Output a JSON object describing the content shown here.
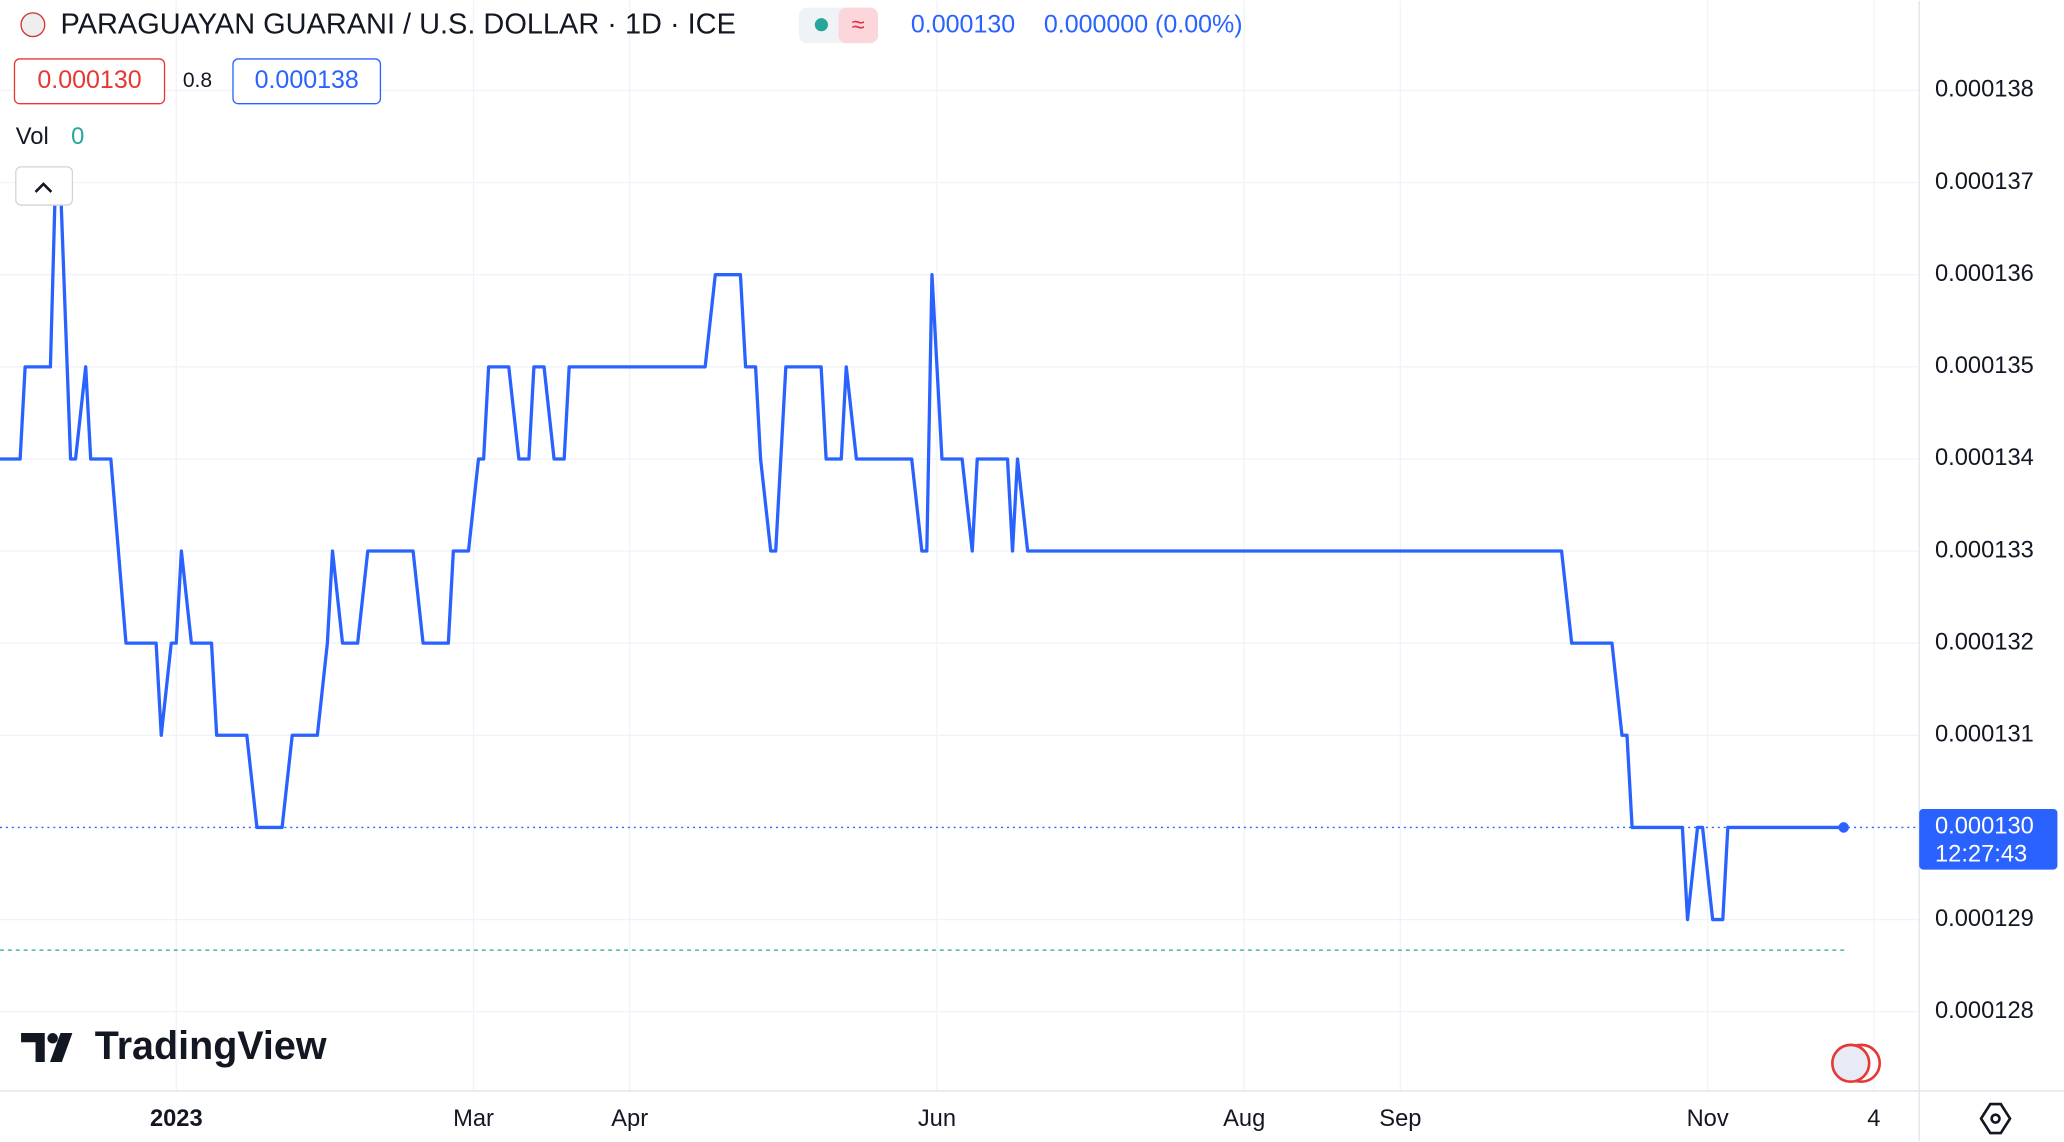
{
  "header": {
    "title": "PARAGUAYAN GUARANI / U.S. DOLLAR · 1D · ICE",
    "last": "0.000130",
    "change": "0.000000 (0.00%)",
    "sell": "0.000130",
    "spread": "0.8",
    "buy": "0.000138",
    "vol_label": "Vol",
    "vol_value": "0",
    "brand": "TradingView"
  },
  "chart_data": {
    "type": "line",
    "color": "#2962ff",
    "grid": true,
    "x": [
      -35,
      -31,
      -30,
      -25,
      -24,
      -23,
      -21,
      -20,
      -18,
      -17,
      -13,
      -10,
      -4,
      -3,
      -1,
      0,
      1,
      3,
      7,
      8,
      14,
      16,
      21,
      23,
      28,
      30,
      31,
      33,
      36,
      38,
      47,
      49,
      54,
      55,
      58,
      60,
      61,
      62,
      66,
      68,
      70,
      71,
      73,
      75,
      77,
      78,
      105,
      107,
      112,
      113,
      115,
      116,
      118,
      119,
      121,
      128,
      129,
      132,
      133,
      135,
      146,
      148,
      149,
      150,
      152,
      156,
      158,
      159,
      165,
      166,
      167,
      169,
      275,
      277,
      285,
      287,
      288,
      289,
      299,
      300,
      302,
      303,
      305,
      307,
      308,
      331
    ],
    "values": [
      0.000134,
      0.000134,
      0.000135,
      0.000135,
      0.000137,
      0.000137,
      0.000134,
      0.000134,
      0.000135,
      0.000134,
      0.000134,
      0.000132,
      0.000132,
      0.000131,
      0.000132,
      0.000132,
      0.000133,
      0.000132,
      0.000132,
      0.000131,
      0.000131,
      0.00013,
      0.00013,
      0.000131,
      0.000131,
      0.000132,
      0.000133,
      0.000132,
      0.000132,
      0.000133,
      0.000133,
      0.000132,
      0.000132,
      0.000133,
      0.000133,
      0.000134,
      0.000134,
      0.000135,
      0.000135,
      0.000134,
      0.000134,
      0.000135,
      0.000135,
      0.000134,
      0.000134,
      0.000135,
      0.000135,
      0.000136,
      0.000136,
      0.000135,
      0.000135,
      0.000134,
      0.000133,
      0.000133,
      0.000135,
      0.000135,
      0.000134,
      0.000134,
      0.000135,
      0.000134,
      0.000134,
      0.000133,
      0.000133,
      0.000136,
      0.000134,
      0.000134,
      0.000133,
      0.000134,
      0.000134,
      0.000133,
      0.000134,
      0.000133,
      0.000133,
      0.000132,
      0.000132,
      0.000131,
      0.000131,
      0.00013,
      0.00013,
      0.000129,
      0.00013,
      0.00013,
      0.000129,
      0.000129,
      0.00013,
      0.00013
    ],
    "xlim": [
      -35,
      346
    ],
    "xticks": [
      {
        "value": 0,
        "label": "2023"
      },
      {
        "value": 59,
        "label": "Mar"
      },
      {
        "value": 90,
        "label": "Apr"
      },
      {
        "value": 151,
        "label": "Jun"
      },
      {
        "value": 212,
        "label": "Aug"
      },
      {
        "value": 243,
        "label": "Sep"
      },
      {
        "value": 304,
        "label": "Nov"
      },
      {
        "value": 337,
        "label": "4"
      }
    ],
    "ylim": [
      0.00012714,
      0.00013897
    ],
    "yticks": [
      0.000128,
      0.000129,
      0.000131,
      0.000132,
      0.000133,
      0.000134,
      0.000135,
      0.000136,
      0.000137,
      0.000138
    ],
    "last_label": "0.000130",
    "countdown": "12:27:43"
  }
}
